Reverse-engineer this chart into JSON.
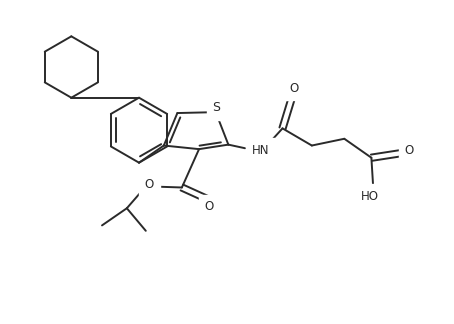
{
  "background_color": "#ffffff",
  "line_color": "#2a2a2a",
  "line_width": 1.4,
  "font_size": 8.5,
  "figsize": [
    4.54,
    3.24
  ],
  "dpi": 100,
  "xlim": [
    0,
    10
  ],
  "ylim": [
    0,
    7.15
  ]
}
